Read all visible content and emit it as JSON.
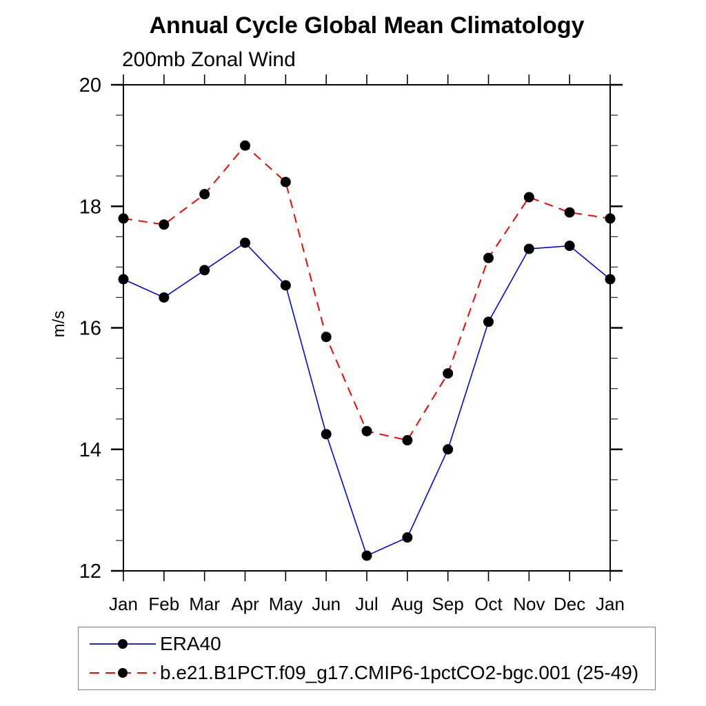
{
  "title": "Annual Cycle Global Mean Climatology",
  "subtitle": "200mb Zonal Wind",
  "chart_data": {
    "type": "line",
    "title": "Annual Cycle Global Mean Climatology",
    "subtitle": "200mb Zonal Wind",
    "xlabel": "",
    "ylabel": "m/s",
    "x_categories": [
      "Jan",
      "Feb",
      "Mar",
      "Apr",
      "May",
      "Jun",
      "Jul",
      "Aug",
      "Sep",
      "Oct",
      "Nov",
      "Dec",
      "Jan"
    ],
    "ylim": [
      12,
      20
    ],
    "y_major_ticks": [
      12,
      14,
      16,
      18,
      20
    ],
    "y_minor_step": 0.5,
    "grid": false,
    "legend_position": "bottom",
    "series": [
      {
        "name": "ERA40",
        "color": "#0000ff",
        "style": "solid",
        "marker": "circle",
        "marker_color": "#000000",
        "values": [
          16.8,
          16.5,
          16.95,
          17.4,
          16.7,
          14.25,
          12.25,
          12.55,
          14.0,
          16.1,
          17.3,
          17.35,
          16.8
        ]
      },
      {
        "name": "b.e21.B1PCT.f09_g17.CMIP6-1pctCO2-bgc.001 (25-49)",
        "color": "#ff0000",
        "style": "dashed",
        "marker": "circle",
        "marker_color": "#000000",
        "values": [
          17.8,
          17.7,
          18.2,
          19.0,
          18.4,
          15.85,
          14.3,
          14.15,
          15.25,
          17.15,
          18.15,
          17.9,
          17.8
        ]
      }
    ]
  },
  "colors": {
    "axis": "#000000",
    "minor_tick": "#333333",
    "background": "#ffffff",
    "legend_border": "#7f7f7f"
  }
}
